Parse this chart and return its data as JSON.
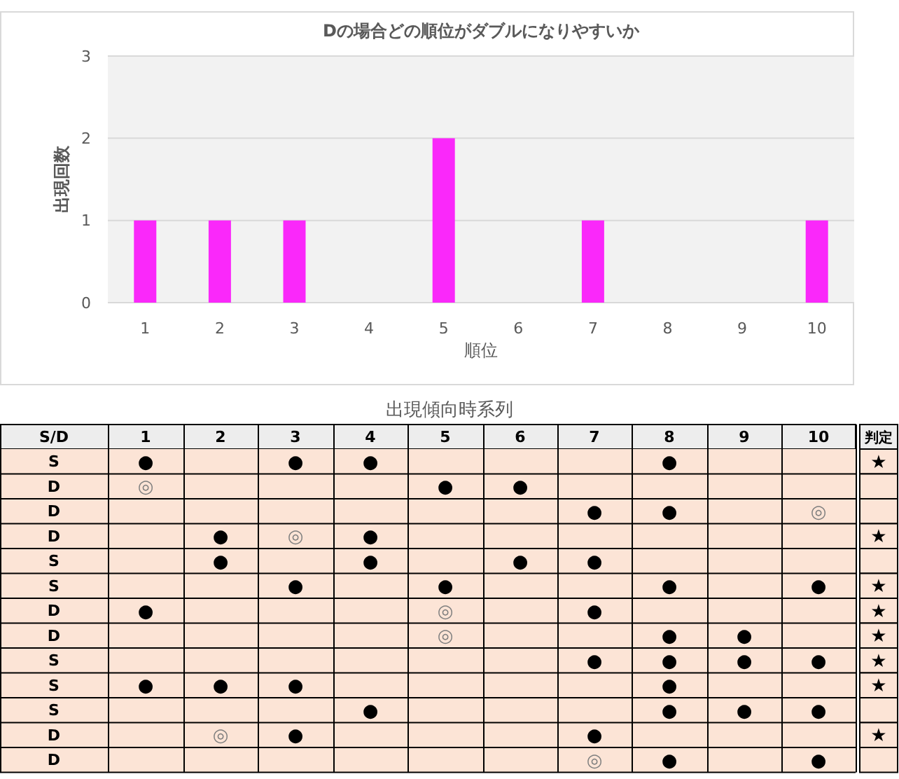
{
  "chart_data": [
    {
      "type": "bar",
      "title": "Dの場合どの順位がダブルになりやすいか",
      "xlabel": "順位",
      "ylabel": "出現回数",
      "categories": [
        "1",
        "2",
        "3",
        "4",
        "5",
        "6",
        "7",
        "8",
        "9",
        "10"
      ],
      "values": [
        1,
        1,
        1,
        0,
        2,
        0,
        1,
        0,
        0,
        1
      ],
      "color": "#fa28fa",
      "ylim": [
        0,
        3
      ],
      "yticks": [
        0,
        1,
        2,
        3
      ],
      "grid": "y"
    },
    {
      "type": "heatmap",
      "title": "出現傾向時系列",
      "ylabel": "S/D",
      "y2label": "判定",
      "categories": [
        "1",
        "2",
        "3",
        "4",
        "5",
        "6",
        "7",
        "8",
        "9",
        "10"
      ],
      "y_categories": [
        "S",
        "D",
        "D",
        "D",
        "S",
        "S",
        "D",
        "D",
        "S",
        "S",
        "S",
        "D",
        "D"
      ],
      "y2_categories": [
        "★",
        null,
        null,
        "★",
        null,
        "★",
        "★",
        "★",
        "★",
        "★",
        null,
        "★",
        null
      ],
      "cells": [
        [
          null,
          null,
          null,
          null,
          null,
          null,
          null,
          null,
          null,
          null
        ],
        [
          null,
          null,
          null,
          null,
          null,
          null,
          null,
          null,
          null,
          null
        ],
        [
          null,
          null,
          null,
          null,
          null,
          null,
          null,
          null,
          null,
          null
        ],
        [
          null,
          null,
          null,
          null,
          null,
          null,
          null,
          null,
          null,
          null
        ],
        [
          null,
          null,
          null,
          null,
          null,
          null,
          null,
          null,
          null,
          null
        ],
        [
          null,
          null,
          null,
          null,
          null,
          null,
          null,
          null,
          null,
          null
        ],
        [
          null,
          null,
          null,
          null,
          null,
          null,
          null,
          null,
          null,
          null
        ],
        [
          null,
          null,
          null,
          null,
          null,
          null,
          null,
          null,
          null,
          null
        ],
        [
          null,
          null,
          null,
          null,
          null,
          null,
          null,
          null,
          null,
          null
        ],
        [
          null,
          null,
          null,
          null,
          null,
          null,
          null,
          null,
          null,
          null
        ],
        [
          null,
          null,
          null,
          null,
          null,
          null,
          null,
          null,
          null,
          null
        ],
        [
          null,
          null,
          null,
          null,
          null,
          null,
          null,
          null,
          null,
          null
        ],
        [
          null,
          null,
          null,
          null,
          null,
          null,
          null,
          null,
          null,
          null
        ]
      ],
      "cell_labels": [
        [
          "●",
          null,
          "●",
          "●",
          null,
          null,
          null,
          "●",
          null,
          null
        ],
        [
          "◎",
          null,
          null,
          null,
          "●",
          "●",
          null,
          null,
          null,
          null
        ],
        [
          null,
          null,
          null,
          null,
          null,
          null,
          "●",
          "●",
          null,
          "◎"
        ],
        [
          null,
          "●",
          "◎",
          "●",
          null,
          null,
          null,
          null,
          null,
          null
        ],
        [
          null,
          "●",
          null,
          "●",
          null,
          "●",
          "●",
          null,
          null,
          null
        ],
        [
          null,
          null,
          "●",
          null,
          "●",
          null,
          null,
          "●",
          null,
          "●"
        ],
        [
          "●",
          null,
          null,
          null,
          "◎",
          null,
          "●",
          null,
          null,
          null
        ],
        [
          null,
          null,
          null,
          null,
          "◎",
          null,
          null,
          "●",
          "●",
          null
        ],
        [
          null,
          null,
          null,
          null,
          null,
          null,
          "●",
          "●",
          "●",
          "●"
        ],
        [
          "●",
          "●",
          "●",
          null,
          null,
          null,
          null,
          "●",
          null,
          null
        ],
        [
          null,
          null,
          null,
          "●",
          null,
          null,
          null,
          "●",
          "●",
          "●"
        ],
        [
          null,
          "◎",
          "●",
          null,
          null,
          null,
          "●",
          null,
          null,
          null
        ],
        [
          null,
          null,
          null,
          null,
          null,
          null,
          "◎",
          "●",
          null,
          "●"
        ]
      ]
    }
  ]
}
